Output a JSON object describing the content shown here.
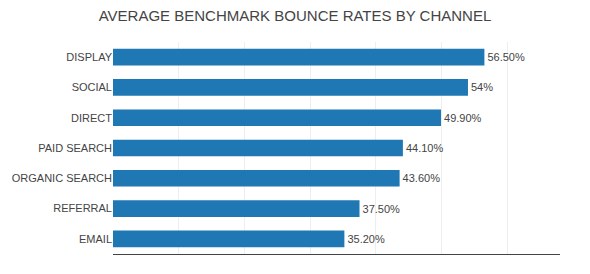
{
  "chart_data": {
    "type": "bar",
    "orientation": "horizontal",
    "title": "AVERAGE BENCHMARK BOUNCE RATES BY CHANNEL",
    "categories": [
      "DISPLAY",
      "SOCIAL",
      "DIRECT",
      "PAID SEARCH",
      "ORGANIC SEARCH",
      "REFERRAL",
      "EMAIL"
    ],
    "values": [
      56.5,
      54.0,
      49.9,
      44.1,
      43.6,
      37.5,
      35.2
    ],
    "value_labels": [
      "56.50%",
      "54%",
      "49.90%",
      "44.10%",
      "43.60%",
      "37.50%",
      "35.20%"
    ],
    "data_labels": true,
    "xlim": [
      0,
      68
    ],
    "xticks": [
      0,
      10,
      20,
      30,
      40,
      50,
      60
    ],
    "grid": true,
    "tick_labels": "y"
  }
}
